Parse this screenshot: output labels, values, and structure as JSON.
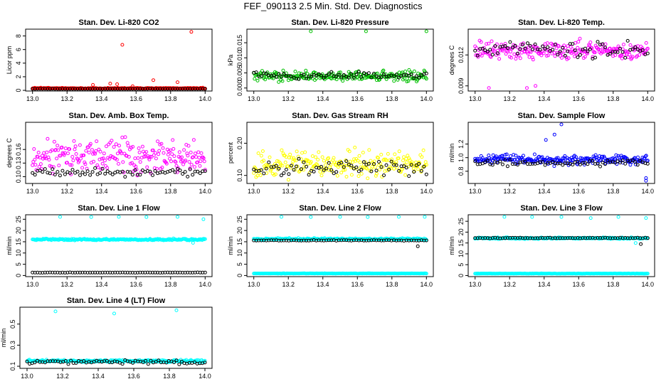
{
  "page": {
    "title": "FEF_090113  2.5 Min. Std. Dev. Diagnostics"
  },
  "colors": {
    "black": "#000000",
    "red": "#ff0000",
    "green": "#00c000",
    "magenta": "#ff00ff",
    "yellow": "#ffff00",
    "blue": "#0000ff",
    "cyan": "#00ffff"
  },
  "chart_data": [
    {
      "type": "scatter",
      "title": "Stan. Dev. Li-820 CO2",
      "ylabel": "Licor ppm",
      "xlabel": "",
      "xlim": [
        12.96,
        14.04
      ],
      "ylim": [
        -0.1,
        9.0
      ],
      "xticks": [
        "13.0",
        "13.2",
        "13.4",
        "13.6",
        "13.8",
        "14.0"
      ],
      "yticks": [
        "0",
        "2",
        "4",
        "6",
        "8"
      ],
      "series": [
        {
          "name": "red",
          "color": "red",
          "base": 0.3,
          "spread": 0.1,
          "seed": 11,
          "outliers": [
            [
              13.52,
              6.7
            ],
            [
              13.92,
              8.6
            ],
            [
              13.7,
              1.5
            ],
            [
              13.45,
              1.0
            ],
            [
              13.35,
              0.8
            ],
            [
              13.58,
              0.6
            ],
            [
              13.84,
              1.2
            ],
            [
              13.49,
              0.9
            ]
          ]
        },
        {
          "name": "black",
          "color": "black",
          "base": 0.18,
          "spread": 0.08,
          "seed": 12,
          "outliers": []
        }
      ]
    },
    {
      "type": "scatter",
      "title": "Stan. Dev. Li-820 Pressure",
      "ylabel": "kPa",
      "xlabel": "",
      "xlim": [
        12.96,
        14.04
      ],
      "ylim": [
        -0.001,
        0.0195
      ],
      "xticks": [
        "13.0",
        "13.2",
        "13.4",
        "13.6",
        "13.8",
        "14.0"
      ],
      "yticks": [
        "0.000",
        "0.005",
        "0.010",
        "0.015"
      ],
      "series": [
        {
          "name": "green",
          "color": "green",
          "base": 0.004,
          "spread": 0.0022,
          "seed": 21,
          "outliers": [
            [
              13.33,
              0.019
            ],
            [
              13.65,
              0.019
            ],
            [
              14.0,
              0.019
            ]
          ]
        },
        {
          "name": "black",
          "color": "black",
          "base": 0.004,
          "spread": 0.0015,
          "seed": 22,
          "outliers": []
        }
      ]
    },
    {
      "type": "scatter",
      "title": "Stan. Dev. Li-820 Temp.",
      "ylabel": "degrees C",
      "xlabel": "",
      "xlim": [
        12.96,
        14.04
      ],
      "ylim": [
        0.0085,
        0.0145
      ],
      "xticks": [
        "13.0",
        "13.2",
        "13.4",
        "13.6",
        "13.8",
        "14.0"
      ],
      "yticks": [
        "0.009",
        "0.012"
      ],
      "series": [
        {
          "name": "magenta",
          "color": "magenta",
          "base": 0.0124,
          "spread": 0.0012,
          "seed": 31,
          "outliers": [
            [
              13.08,
              0.0088
            ],
            [
              13.3,
              0.0088
            ],
            [
              13.35,
              0.009
            ]
          ]
        },
        {
          "name": "black",
          "color": "black",
          "base": 0.0125,
          "spread": 0.001,
          "seed": 32,
          "outliers": []
        }
      ]
    },
    {
      "type": "scatter",
      "title": "Stan. Dev. Amb. Box Temp.",
      "ylabel": "degrees C",
      "xlabel": "",
      "xlim": [
        12.96,
        14.04
      ],
      "ylim": [
        0.085,
        0.22
      ],
      "xticks": [
        "13.0",
        "13.2",
        "13.4",
        "13.6",
        "13.8",
        "14.0"
      ],
      "yticks": [
        "0.10",
        "0.13",
        "0.16"
      ],
      "series": [
        {
          "name": "magenta",
          "color": "magenta",
          "base": 0.145,
          "spread": 0.045,
          "seed": 41,
          "outliers": []
        },
        {
          "name": "black",
          "color": "black",
          "base": 0.11,
          "spread": 0.012,
          "seed": 42,
          "outliers": []
        }
      ]
    },
    {
      "type": "scatter",
      "title": "Stan. Dev. Gas Stream RH",
      "ylabel": "percent",
      "xlabel": "",
      "xlim": [
        12.96,
        14.04
      ],
      "ylim": [
        0.075,
        0.265
      ],
      "xticks": [
        "13.0",
        "13.2",
        "13.4",
        "13.6",
        "13.8",
        "14.0"
      ],
      "yticks": [
        "0.10",
        "0.20"
      ],
      "series": [
        {
          "name": "yellow",
          "color": "yellow",
          "base": 0.135,
          "spread": 0.055,
          "seed": 51,
          "outliers": []
        },
        {
          "name": "black",
          "color": "black",
          "base": 0.125,
          "spread": 0.03,
          "seed": 52,
          "outliers": []
        }
      ]
    },
    {
      "type": "scatter",
      "title": "Stan. Dev. Sample Flow",
      "ylabel": "ml/min",
      "xlabel": "",
      "xlim": [
        12.96,
        14.04
      ],
      "ylim": [
        0.62,
        1.52
      ],
      "xticks": [
        "13.0",
        "13.2",
        "13.4",
        "13.6",
        "13.8",
        "14.0"
      ],
      "yticks": [
        "0.8",
        "1.0",
        "1.2"
      ],
      "series": [
        {
          "name": "blue",
          "color": "blue",
          "base": 0.97,
          "spread": 0.09,
          "seed": 61,
          "outliers": [
            [
              13.5,
              1.5
            ],
            [
              13.46,
              1.34
            ],
            [
              13.41,
              1.26
            ],
            [
              13.99,
              0.66
            ],
            [
              13.99,
              0.7
            ]
          ]
        },
        {
          "name": "black",
          "color": "black",
          "base": 0.92,
          "spread": 0.06,
          "seed": 62,
          "outliers": []
        }
      ]
    },
    {
      "type": "scatter",
      "title": "Stan. Dev. Line 1 Flow",
      "ylabel": "ml/min",
      "xlabel": "",
      "xlim": [
        12.96,
        14.04
      ],
      "ylim": [
        -0.5,
        27
      ],
      "xticks": [
        "13.0",
        "13.2",
        "13.4",
        "13.6",
        "13.8",
        "14.0"
      ],
      "yticks": [
        "0",
        "5",
        "10",
        "15",
        "20",
        "25"
      ],
      "series": [
        {
          "name": "cyan",
          "color": "cyan",
          "base": 16.0,
          "spread": 0.5,
          "seed": 71,
          "outliers": [
            [
              13.16,
              26.5
            ],
            [
              13.34,
              26.0
            ],
            [
              13.5,
              26.5
            ],
            [
              13.66,
              26.0
            ],
            [
              13.84,
              26.5
            ],
            [
              13.99,
              25.0
            ],
            [
              13.93,
              14.5
            ]
          ]
        },
        {
          "name": "black",
          "color": "black",
          "base": 1.3,
          "spread": 0.1,
          "seed": 72,
          "outliers": []
        }
      ]
    },
    {
      "type": "scatter",
      "title": "Stan. Dev. Line 2 Flow",
      "ylabel": "ml/min",
      "xlabel": "",
      "xlim": [
        12.96,
        14.04
      ],
      "ylim": [
        -0.5,
        27
      ],
      "xticks": [
        "13.0",
        "13.2",
        "13.4",
        "13.6",
        "13.8",
        "14.0"
      ],
      "yticks": [
        "0",
        "5",
        "10",
        "15",
        "20",
        "25"
      ],
      "series": [
        {
          "name": "cyan",
          "color": "cyan",
          "base": 0.9,
          "spread": 0.1,
          "seed": 81,
          "outliers": [
            [
              13.16,
              26.5
            ],
            [
              13.33,
              26.0
            ],
            [
              13.5,
              26.5
            ],
            [
              13.66,
              26.0
            ],
            [
              13.84,
              26.5
            ],
            [
              13.99,
              26.5
            ]
          ]
        },
        {
          "name": "cyan-band",
          "color": "cyan",
          "base": 16.2,
          "spread": 0.5,
          "seed": 82,
          "outliers": []
        },
        {
          "name": "black",
          "color": "black",
          "base": 15.6,
          "spread": 0.2,
          "seed": 83,
          "outliers": [
            [
              13.95,
              13.0
            ]
          ]
        }
      ]
    },
    {
      "type": "scatter",
      "title": "Stan. Dev. Line 3 Flow",
      "ylabel": "ml/min",
      "xlabel": "",
      "xlim": [
        12.96,
        14.04
      ],
      "ylim": [
        -0.5,
        28
      ],
      "xticks": [
        "13.0",
        "13.2",
        "13.4",
        "13.6",
        "13.8",
        "14.0"
      ],
      "yticks": [
        "0",
        "5",
        "10",
        "15",
        "20",
        "25"
      ],
      "series": [
        {
          "name": "cyan",
          "color": "cyan",
          "base": 0.9,
          "spread": 0.1,
          "seed": 91,
          "outliers": [
            [
              13.17,
              27.5
            ],
            [
              13.33,
              27.0
            ],
            [
              13.5,
              27.0
            ],
            [
              13.67,
              26.5
            ],
            [
              13.83,
              27.0
            ],
            [
              13.99,
              26.5
            ],
            [
              13.93,
              15.0
            ]
          ]
        },
        {
          "name": "cyan-band",
          "color": "cyan",
          "base": 17.2,
          "spread": 0.5,
          "seed": 92,
          "outliers": []
        },
        {
          "name": "black",
          "color": "black",
          "base": 17.3,
          "spread": 0.2,
          "seed": 93,
          "outliers": [
            [
              13.96,
              14.5
            ]
          ]
        }
      ]
    },
    {
      "type": "scatter",
      "title": "Stan. Dev. Line 4 (LT) Flow",
      "ylabel": "ml/min",
      "xlabel": "",
      "xlim": [
        12.96,
        14.04
      ],
      "ylim": [
        0.08,
        0.66
      ],
      "xticks": [
        "13.0",
        "13.2",
        "13.4",
        "13.6",
        "13.8",
        "14.0"
      ],
      "yticks": [
        "0.1",
        "0.3",
        "0.5"
      ],
      "series": [
        {
          "name": "cyan",
          "color": "cyan",
          "base": 0.15,
          "spread": 0.015,
          "seed": 101,
          "outliers": [
            [
              13.16,
              0.62
            ],
            [
              13.49,
              0.6
            ],
            [
              13.84,
              0.63
            ]
          ]
        },
        {
          "name": "black",
          "color": "black",
          "base": 0.14,
          "spread": 0.025,
          "seed": 102,
          "outliers": []
        }
      ]
    }
  ]
}
